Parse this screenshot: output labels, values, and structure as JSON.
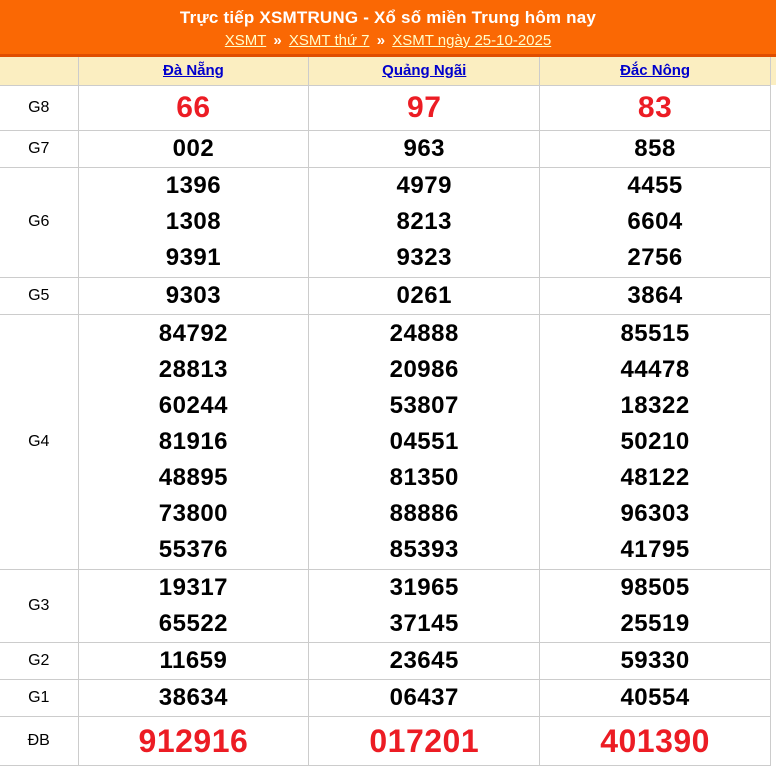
{
  "header": {
    "title": "Trực tiếp XSMTRUNG - Xổ số miền Trung hôm nay",
    "separator": "»",
    "breadcrumb": [
      {
        "label": "XSMT"
      },
      {
        "label": "XSMT thứ 7"
      },
      {
        "label": "XSMT ngày 25-10-2025"
      }
    ]
  },
  "colors": {
    "header_bg": "#fa6804",
    "header_line": "#e04e00",
    "thead_bg": "#fbeec1",
    "province_link": "#0000cc",
    "breadcrumb_link": "#ffffcc",
    "number_red": "#ec1c24",
    "number_black": "#000000",
    "border": "#cccccc"
  },
  "table": {
    "provinces": [
      "Đà Nẵng",
      "Quảng Ngãi",
      "Đắc Nông"
    ],
    "rows": [
      {
        "prize": "G8",
        "style": "red-large",
        "values": [
          [
            "66"
          ],
          [
            "97"
          ],
          [
            "83"
          ]
        ]
      },
      {
        "prize": "G7",
        "style": "",
        "values": [
          [
            "002"
          ],
          [
            "963"
          ],
          [
            "858"
          ]
        ]
      },
      {
        "prize": "G6",
        "style": "",
        "values": [
          [
            "1396",
            "1308",
            "9391"
          ],
          [
            "4979",
            "8213",
            "9323"
          ],
          [
            "4455",
            "6604",
            "2756"
          ]
        ]
      },
      {
        "prize": "G5",
        "style": "",
        "values": [
          [
            "9303"
          ],
          [
            "0261"
          ],
          [
            "3864"
          ]
        ]
      },
      {
        "prize": "G4",
        "style": "",
        "values": [
          [
            "84792",
            "28813",
            "60244",
            "81916",
            "48895",
            "73800",
            "55376"
          ],
          [
            "24888",
            "20986",
            "53807",
            "04551",
            "81350",
            "88886",
            "85393"
          ],
          [
            "85515",
            "44478",
            "18322",
            "50210",
            "48122",
            "96303",
            "41795"
          ]
        ]
      },
      {
        "prize": "G3",
        "style": "",
        "values": [
          [
            "19317",
            "65522"
          ],
          [
            "31965",
            "37145"
          ],
          [
            "98505",
            "25519"
          ]
        ]
      },
      {
        "prize": "G2",
        "style": "",
        "values": [
          [
            "11659"
          ],
          [
            "23645"
          ],
          [
            "59330"
          ]
        ]
      },
      {
        "prize": "G1",
        "style": "",
        "values": [
          [
            "38634"
          ],
          [
            "06437"
          ],
          [
            "40554"
          ]
        ]
      },
      {
        "prize": "ĐB",
        "style": "red-xlarge",
        "values": [
          [
            "912916"
          ],
          [
            "017201"
          ],
          [
            "401390"
          ]
        ]
      }
    ]
  }
}
